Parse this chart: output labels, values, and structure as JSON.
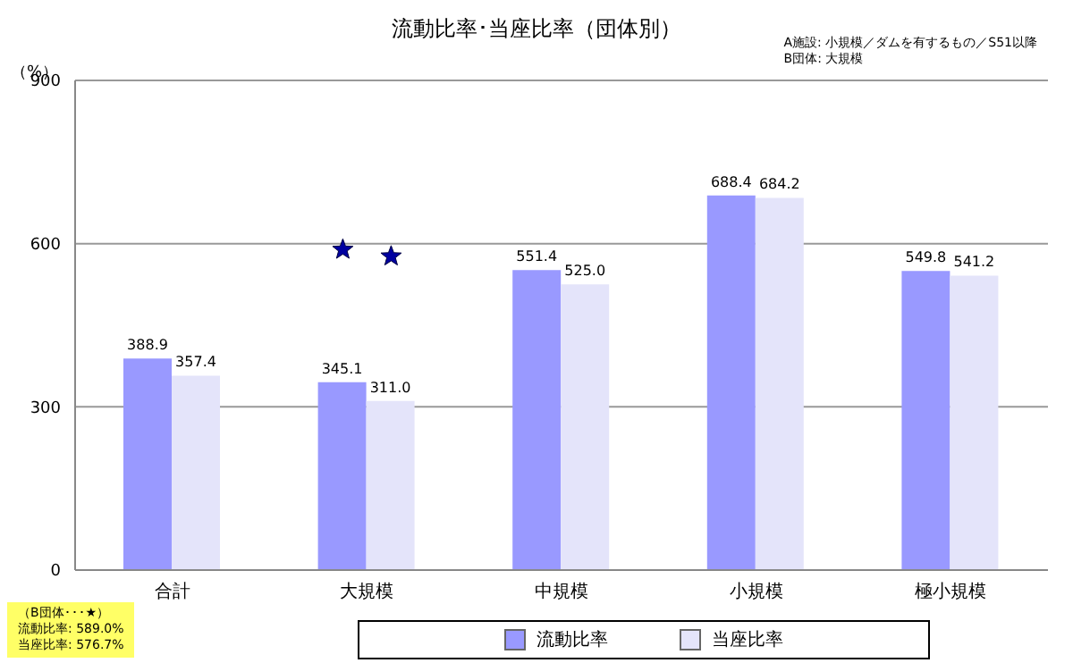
{
  "chart_data": {
    "type": "bar",
    "title": "流動比率･当座比率（団体別）",
    "ylabel": "（%）",
    "categories": [
      "合計",
      "大規模",
      "中規模",
      "小規模",
      "極小規模"
    ],
    "series": [
      {
        "name": "流動比率",
        "color": "#9999ff",
        "values": [
          388.9,
          345.1,
          551.4,
          688.4,
          549.8
        ],
        "value_labels": [
          "388.9",
          "345.1",
          "551.4",
          "688.4",
          "549.8"
        ]
      },
      {
        "name": "当座比率",
        "color": "#e4e4fa",
        "values": [
          357.4,
          311.0,
          525.0,
          684.2,
          541.2
        ],
        "value_labels": [
          "357.4",
          "311.0",
          "525.0",
          "684.2",
          "541.2"
        ]
      },
      {
        "type": "scatter",
        "color": "#0000a0",
        "x": [
          "大規模"
        ],
        "values": [
          589.0
        ],
        "marker": "star"
      },
      {
        "type": "scatter",
        "color": "#0000a0",
        "x": [
          "大規模"
        ],
        "values": [
          576.7
        ],
        "marker": "star"
      }
    ],
    "ylim": [
      0,
      900
    ],
    "yticks": [
      0,
      300,
      600,
      900
    ],
    "grid": "y",
    "legend": "bottom",
    "annotations": [
      "A施設: 小規模／ダムを有するもの／S51以降",
      "B団体: 大規模",
      "（B団体･･･★）",
      "流動比率: 589.0%",
      "当座比率: 576.7%"
    ]
  }
}
